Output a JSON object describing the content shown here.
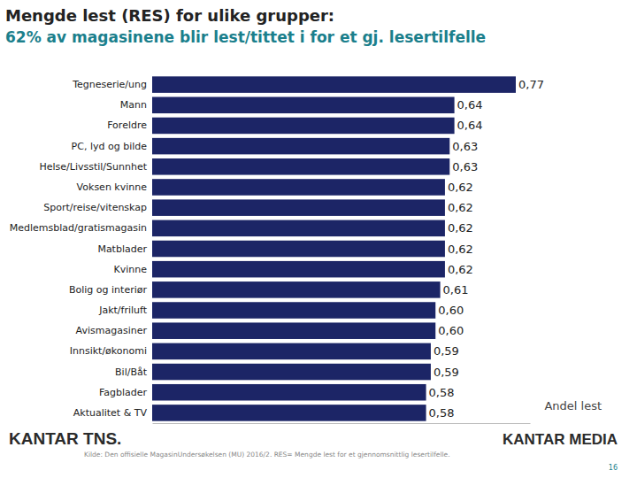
{
  "chart_data": {
    "type": "bar",
    "orientation": "horizontal",
    "title": "Mengde lest (RES) for ulike grupper:",
    "subtitle": "62% av magasinene blir lest/tittet i for et gj. lesertilfelle",
    "categories": [
      "Tegneserie/ung",
      "Mann",
      "Foreldre",
      "PC, lyd og bilde",
      "Helse/Livsstil/Sunnhet",
      "Voksen kvinne",
      "Sport/reise/vitenskap",
      "Medlemsblad/gratismagasin",
      "Matblader",
      "Kvinne",
      "Bolig og interiør",
      "Jakt/friluft",
      "Avismagasiner",
      "Innsikt/økonomi",
      "Bil/Båt",
      "Fagblader",
      "Aktualitet & TV"
    ],
    "values": [
      0.77,
      0.64,
      0.64,
      0.63,
      0.63,
      0.62,
      0.62,
      0.62,
      0.62,
      0.62,
      0.61,
      0.6,
      0.6,
      0.59,
      0.59,
      0.58,
      0.58
    ],
    "value_labels": [
      "0,77",
      "0,64",
      "0,64",
      "0,63",
      "0,63",
      "0,62",
      "0,62",
      "0,62",
      "0,62",
      "0,62",
      "0,61",
      "0,60",
      "0,60",
      "0,59",
      "0,59",
      "0,58",
      "0,58"
    ],
    "color": "#1c2566",
    "xlim": [
      0,
      0.8
    ],
    "xlabel": "Andel lest",
    "data_labels": true,
    "tick_labels": "y",
    "grid": false,
    "source": "Kilde: Den offisielle MagasinUndersøkelsen (MU) 2016/2. RES= Mengde lest for et gjennomsnittlig lesertilfelle.",
    "logos": [
      "KANTAR TNS.",
      "KANTAR MEDIA"
    ],
    "page_number": 16
  }
}
